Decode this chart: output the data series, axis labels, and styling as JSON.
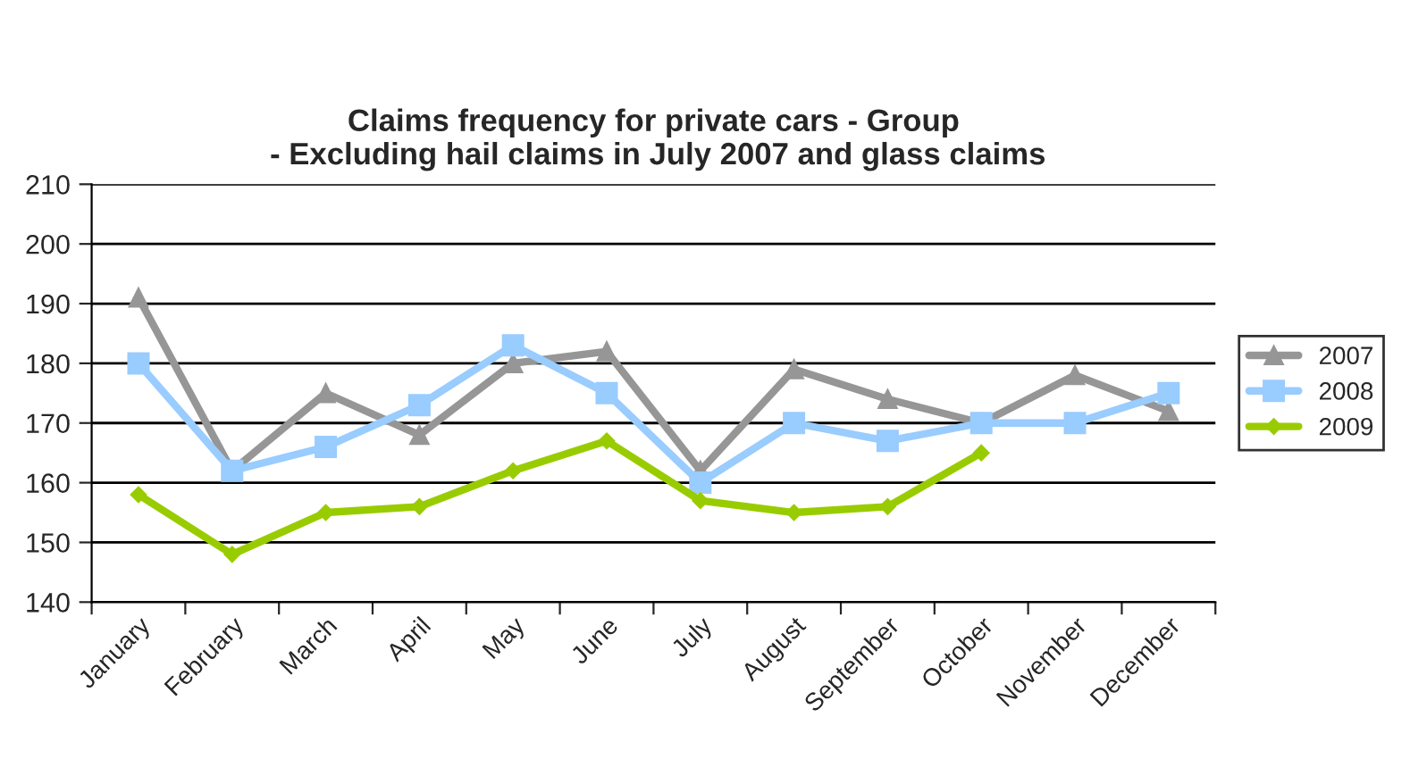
{
  "chart_data": {
    "type": "line",
    "title": "Claims frequency for private cars - Group\n - Excluding hail claims in July 2007 and glass claims",
    "categories": [
      "January",
      "February",
      "March",
      "April",
      "May",
      "June",
      "July",
      "August",
      "September",
      "October",
      "November",
      "December"
    ],
    "series": [
      {
        "name": "2007",
        "color": "#969696",
        "marker": "triangle",
        "values": [
          191,
          162,
          175,
          168,
          180,
          182,
          162,
          179,
          174,
          170,
          178,
          172
        ]
      },
      {
        "name": "2008",
        "color": "#99ccff",
        "marker": "square",
        "values": [
          180,
          162,
          166,
          173,
          183,
          175,
          160,
          170,
          167,
          170,
          170,
          175
        ]
      },
      {
        "name": "2009",
        "color": "#99cc00",
        "marker": "diamond",
        "values": [
          158,
          148,
          155,
          156,
          162,
          167,
          157,
          155,
          156,
          165,
          null,
          null
        ]
      }
    ],
    "ylim": [
      140,
      210
    ],
    "yticks": [
      140,
      150,
      160,
      170,
      180,
      190,
      200,
      210
    ],
    "grid": "y",
    "legend": "right",
    "line_style": "solid"
  }
}
